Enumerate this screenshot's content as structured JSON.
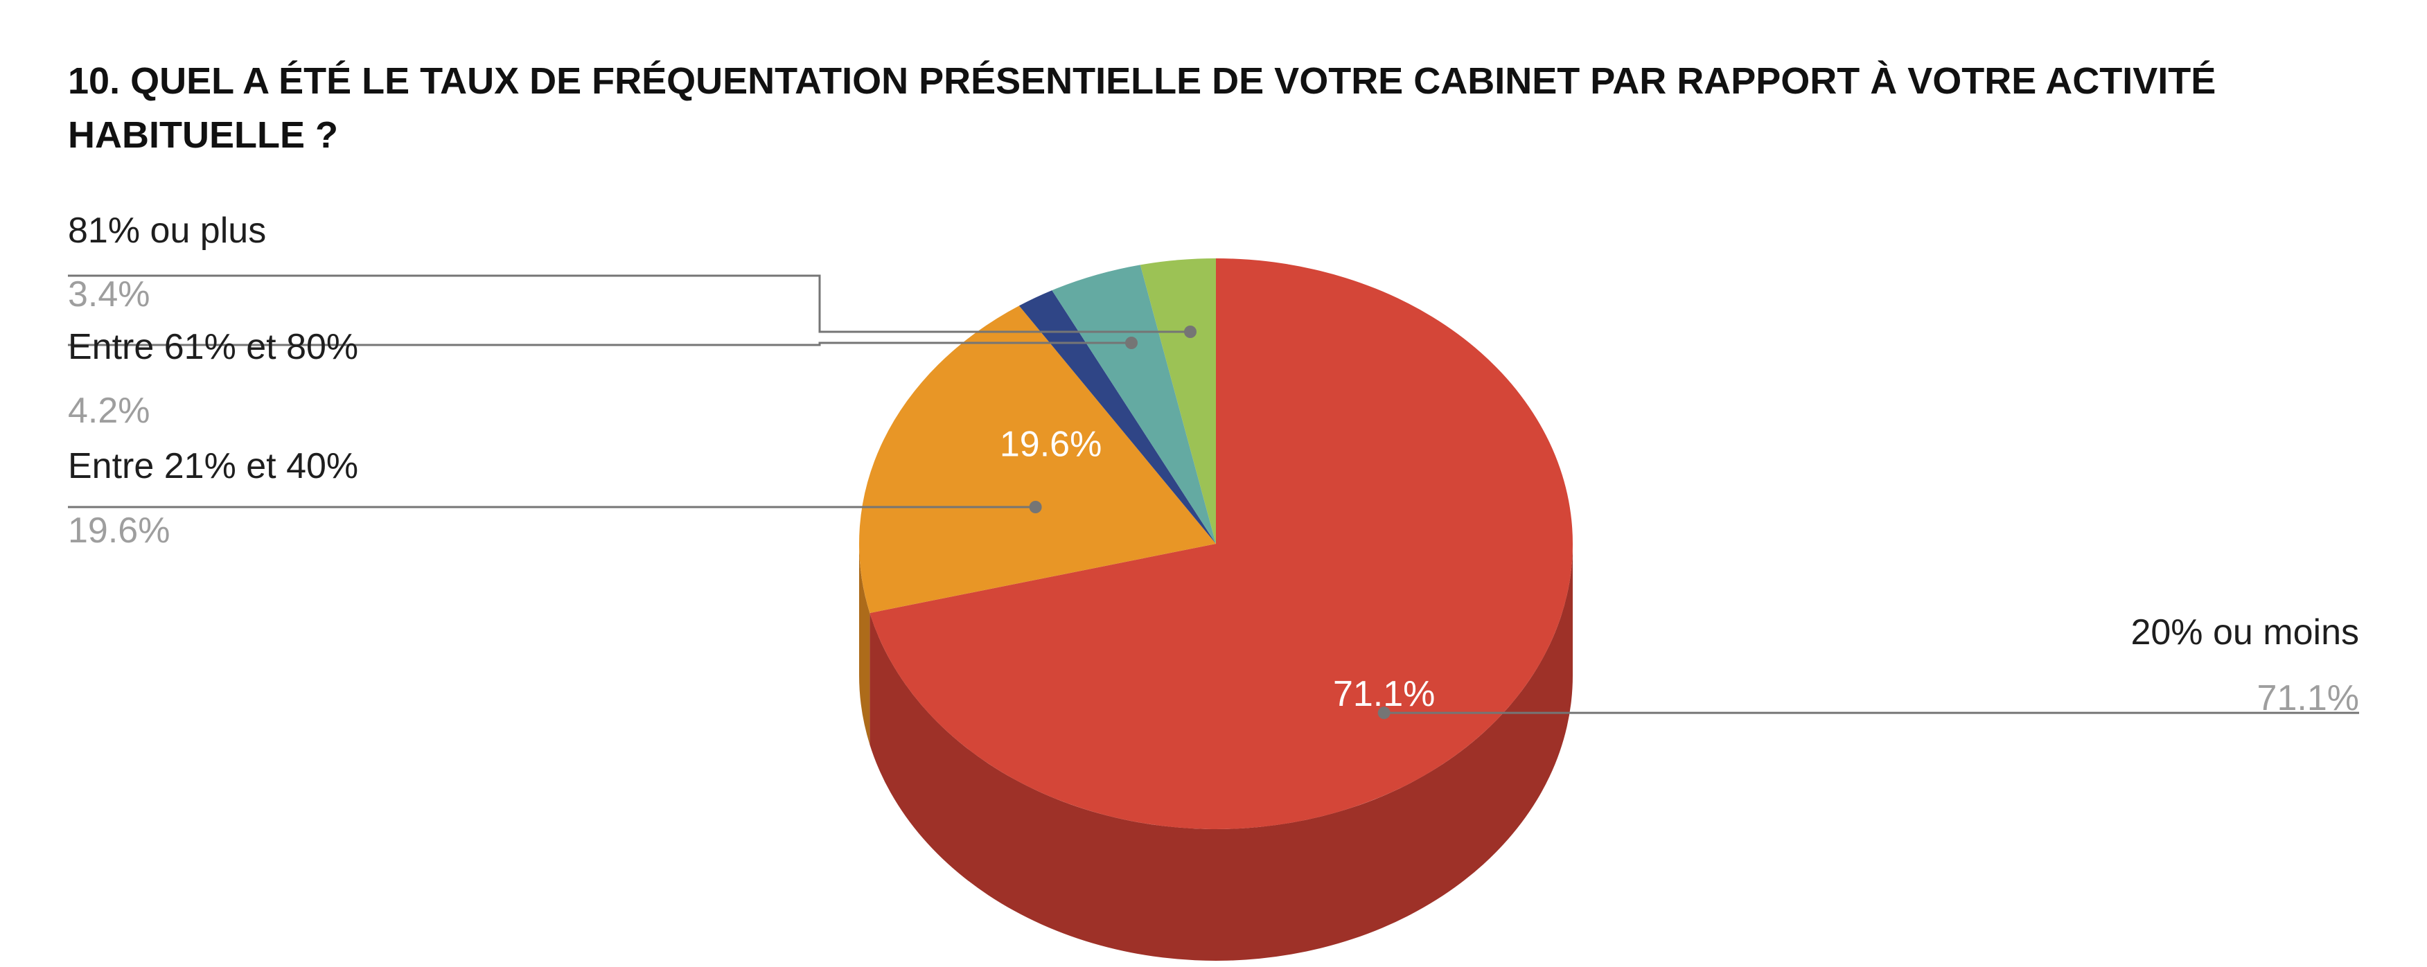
{
  "chart_data": {
    "type": "pie",
    "title": "10. QUEL A ÉTÉ LE TAUX DE FRÉQUENTATION PRÉSENTIELLE DE VOTRE CABINET PAR RAPPORT À VOTRE ACTIVITÉ HABITUELLE ?",
    "style": "3d",
    "slices": [
      {
        "label": "20% ou moins",
        "value": 71.1,
        "display": "71.1%",
        "color": "#d44638",
        "side_color": "#9e3128"
      },
      {
        "label": "Entre 21% et 40%",
        "value": 19.6,
        "display": "19.6%",
        "color": "#e89626",
        "side_color": "#ad6b1a"
      },
      {
        "label": "",
        "value": 1.7,
        "display": "",
        "color": "#2f4586",
        "side_color": "#22325e"
      },
      {
        "label": "Entre 61% et 80%",
        "value": 4.2,
        "display": "4.2%",
        "color": "#64aaa2",
        "side_color": "#477b75"
      },
      {
        "label": "81% ou plus",
        "value": 3.4,
        "display": "3.4%",
        "color": "#9cc255",
        "side_color": "#6f8a3c"
      }
    ],
    "inside_labels": [
      "71.1%",
      "19.6%"
    ]
  }
}
